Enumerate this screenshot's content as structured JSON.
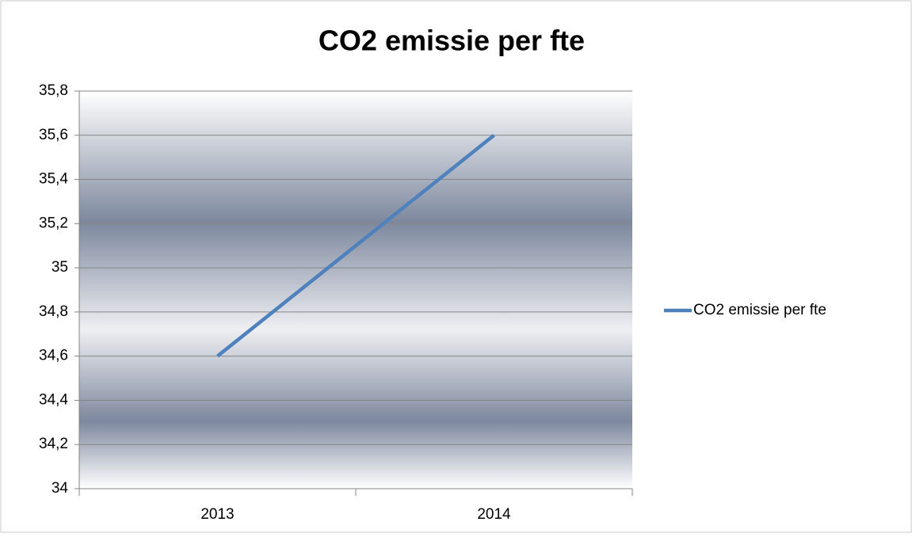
{
  "chart_data": {
    "type": "line",
    "title": "CO2 emissie per fte",
    "categories": [
      "2013",
      "2014"
    ],
    "series": [
      {
        "name": "CO2 emissie per fte",
        "color": "#4f81bd",
        "values": [
          34.6,
          35.6
        ]
      }
    ],
    "ylim": [
      34,
      35.8
    ],
    "yticks": [
      34,
      {
        "value": 34.2,
        "label": "34,2"
      },
      {
        "value": 34.4,
        "label": "34,4"
      },
      {
        "value": 34.6,
        "label": "34,6"
      },
      {
        "value": 34.8,
        "label": "34,8"
      },
      35,
      {
        "value": 35.2,
        "label": "35,2"
      },
      {
        "value": 35.4,
        "label": "35,4"
      },
      {
        "value": 35.6,
        "label": "35,6"
      },
      {
        "value": 35.8,
        "label": "35,8"
      }
    ],
    "grid": true,
    "legend": "right"
  }
}
